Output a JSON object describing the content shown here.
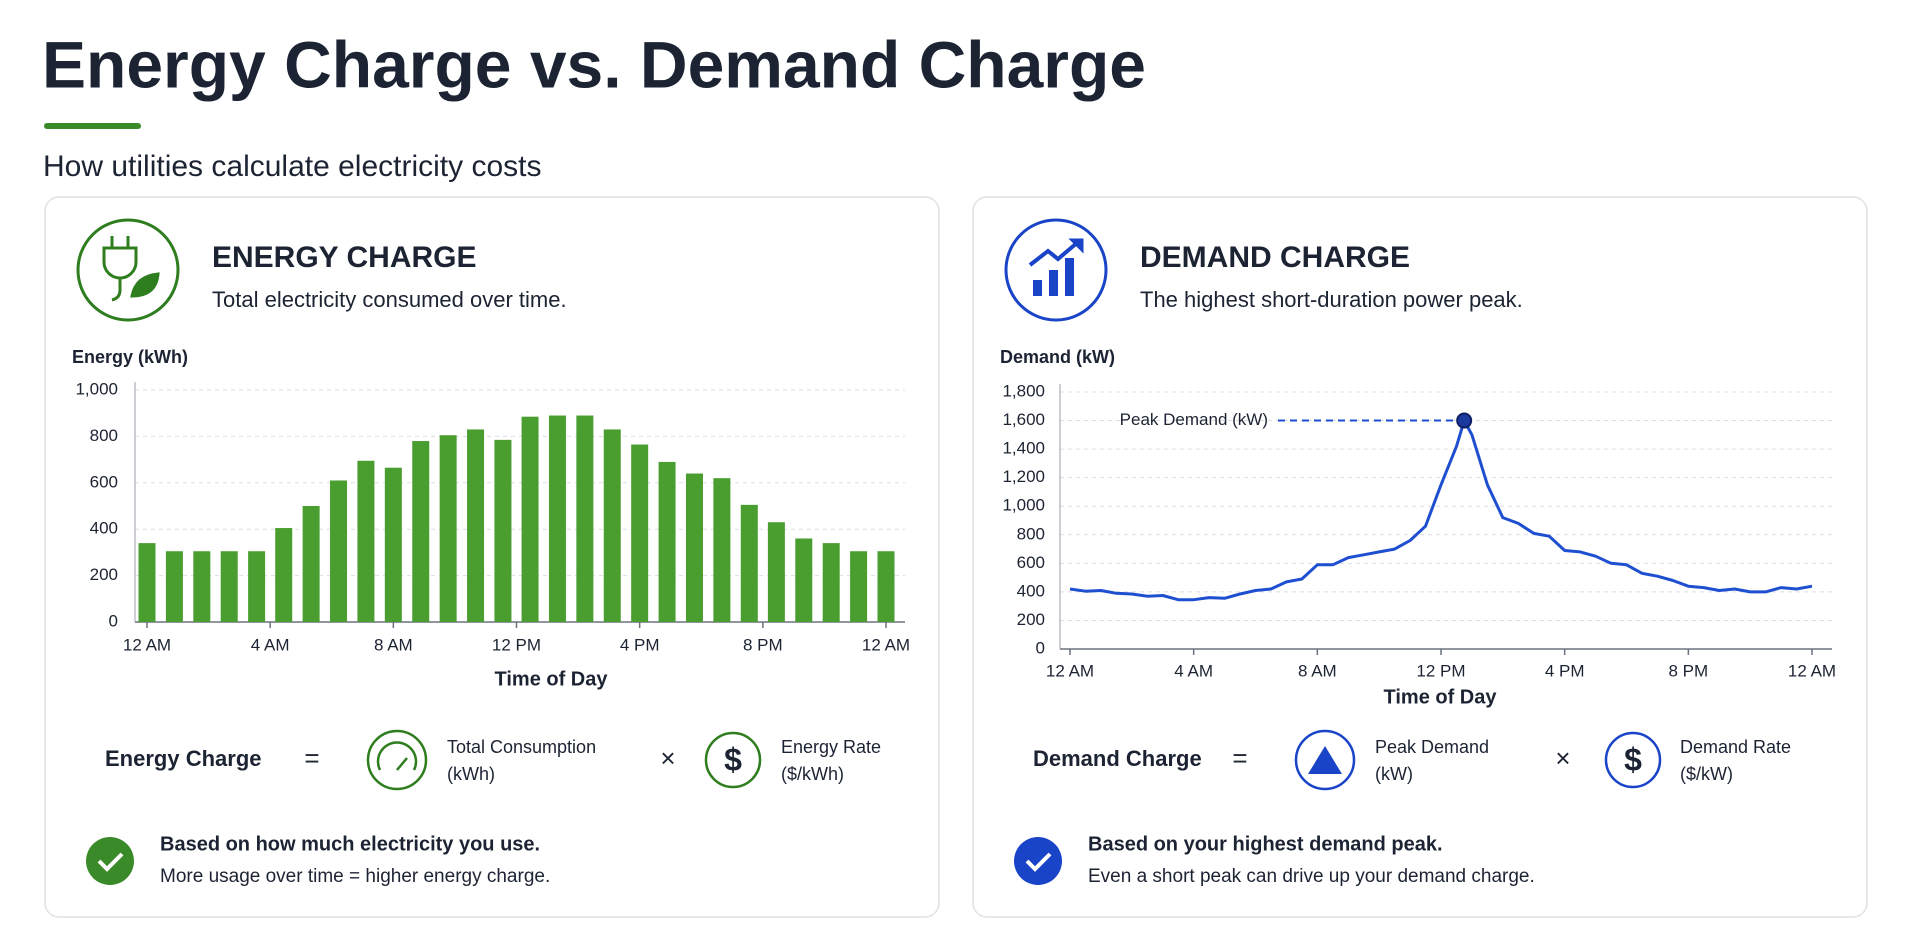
{
  "header": {
    "title": "Energy Charge vs. Demand Charge",
    "subtitle": "How utilities calculate electricity costs"
  },
  "panels": [
    {
      "heading": "ENERGY CHARGE",
      "description": "Total electricity consumed over time.",
      "color": "#2e7d1e",
      "formula": {
        "name": "Energy Charge",
        "equals": "=",
        "term1": [
          "Total Consumption",
          "(kWh)"
        ],
        "times": "×",
        "term2": [
          "Energy Rate",
          "($/kWh)"
        ]
      },
      "note": {
        "headline": "Based on how much electricity you use.",
        "detail": "More usage over time = higher energy charge."
      }
    },
    {
      "heading": "DEMAND CHARGE",
      "description": "The highest short-duration power peak.",
      "color": "#1a44c8",
      "formula": {
        "name": "Demand Charge",
        "equals": "=",
        "term1": [
          "Peak Demand",
          "(kW)"
        ],
        "times": "×",
        "term2": [
          "Demand Rate",
          "($/kW)"
        ]
      },
      "note": {
        "headline": "Based on your highest demand peak.",
        "detail": "Even a short peak can drive up your demand charge."
      }
    }
  ],
  "chart_data": [
    {
      "type": "bar",
      "ylabel": "Energy (kWh)",
      "xlabel": "Time of Day",
      "color": "#4a9e2f",
      "grid": true,
      "x": [
        0,
        0.89,
        1.78,
        2.67,
        3.56,
        4.44,
        5.33,
        6.22,
        7.11,
        8,
        8.89,
        9.78,
        10.67,
        11.56,
        12.44,
        13.33,
        14.22,
        15.11,
        16,
        16.89,
        17.78,
        18.67,
        19.56,
        20.44,
        21.33,
        22.22,
        23.11,
        24
      ],
      "values": [
        340,
        305,
        305,
        305,
        305,
        405,
        500,
        610,
        695,
        665,
        780,
        805,
        830,
        785,
        885,
        890,
        890,
        830,
        765,
        690,
        640,
        620,
        505,
        430,
        360,
        340,
        305,
        305
      ],
      "xlim": [
        0,
        24
      ],
      "xticks": [
        {
          "value": 0,
          "label": "12 AM"
        },
        {
          "value": 4,
          "label": "4 AM"
        },
        {
          "value": 8,
          "label": "8 AM"
        },
        {
          "value": 12,
          "label": "12 PM"
        },
        {
          "value": 16,
          "label": "4 PM"
        },
        {
          "value": 20,
          "label": "8 PM"
        },
        {
          "value": 24,
          "label": "12 AM"
        }
      ],
      "ylim": [
        0,
        1000
      ],
      "yticks": [
        0,
        200,
        400,
        600,
        800,
        {
          "value": 1000,
          "label": "1,000"
        }
      ]
    },
    {
      "type": "line",
      "ylabel": "Demand (kW)",
      "xlabel": "Time of Day",
      "color": "#1f4fd1",
      "grid": true,
      "annotation": "Peak Demand (kW)",
      "x": [
        0,
        0.5,
        1,
        1.5,
        2,
        2.5,
        3,
        3.5,
        4,
        4.5,
        5,
        5.5,
        6,
        6.5,
        7,
        7.5,
        8,
        8.5,
        9,
        9.5,
        10,
        10.5,
        11,
        11.5,
        12,
        12.5,
        12.75,
        13,
        13.5,
        14,
        14.5,
        15,
        15.5,
        16,
        16.5,
        17,
        17.5,
        18,
        18.5,
        19,
        19.5,
        20,
        20.5,
        21,
        21.5,
        22,
        22.5,
        23,
        23.5,
        24
      ],
      "values": [
        420,
        405,
        410,
        390,
        385,
        370,
        375,
        345,
        345,
        360,
        355,
        385,
        410,
        420,
        470,
        490,
        590,
        590,
        640,
        660,
        680,
        700,
        760,
        860,
        1150,
        1420,
        1600,
        1500,
        1150,
        920,
        880,
        810,
        790,
        690,
        680,
        650,
        600,
        590,
        530,
        510,
        480,
        440,
        430,
        410,
        420,
        400,
        400,
        430,
        420,
        440
      ],
      "xlim": [
        0,
        24
      ],
      "xticks": [
        {
          "value": 0,
          "label": "12 AM"
        },
        {
          "value": 4,
          "label": "4 AM"
        },
        {
          "value": 8,
          "label": "8 AM"
        },
        {
          "value": 12,
          "label": "12 PM"
        },
        {
          "value": 16,
          "label": "4 PM"
        },
        {
          "value": 20,
          "label": "8 PM"
        },
        {
          "value": 24,
          "label": "12 AM"
        }
      ],
      "ylim": [
        0,
        1800
      ],
      "yticks": [
        0,
        200,
        400,
        600,
        800,
        {
          "value": 1000,
          "label": "1,000"
        },
        {
          "value": 1200,
          "label": "1,200"
        },
        {
          "value": 1400,
          "label": "1,400"
        },
        {
          "value": 1600,
          "label": "1,600"
        },
        {
          "value": 1800,
          "label": "1,800"
        }
      ]
    }
  ]
}
